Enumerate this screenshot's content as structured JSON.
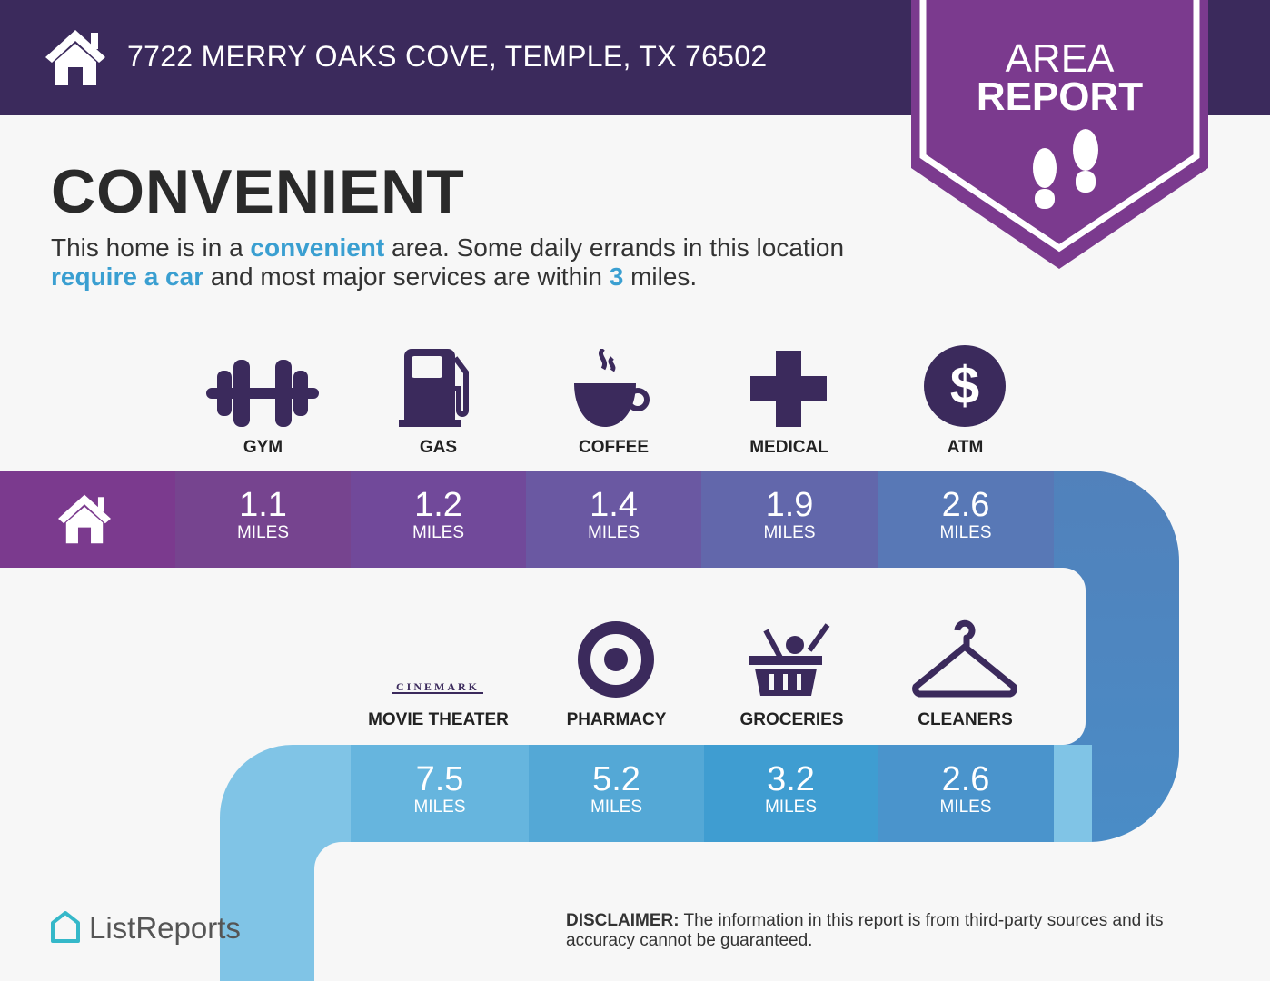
{
  "header": {
    "address": "7722 MERRY OAKS COVE, TEMPLE, TX 76502",
    "icon": "home-icon"
  },
  "badge": {
    "line1": "AREA",
    "line2": "REPORT",
    "icon": "footprints-icon"
  },
  "main": {
    "title": "CONVENIENT",
    "desc": {
      "p1": "This home is in a ",
      "h1": "convenient",
      "p2": " area. Some daily errands in this location ",
      "h2": "require a car",
      "p3": " and most major services are within ",
      "h3": "3",
      "p4": " miles."
    }
  },
  "row1": [
    {
      "label": "GYM",
      "value": "1.1",
      "unit": "MILES",
      "icon": "dumbbell-icon",
      "color": "#76448f"
    },
    {
      "label": "GAS",
      "value": "1.2",
      "unit": "MILES",
      "icon": "gas-pump-icon",
      "color": "#71499a"
    },
    {
      "label": "COFFEE",
      "value": "1.4",
      "unit": "MILES",
      "icon": "coffee-cup-icon",
      "color": "#6a58a2"
    },
    {
      "label": "MEDICAL",
      "value": "1.9",
      "unit": "MILES",
      "icon": "medical-cross-icon",
      "color": "#6267ab"
    },
    {
      "label": "ATM",
      "value": "2.6",
      "unit": "MILES",
      "icon": "dollar-icon",
      "color": "#5878b6"
    }
  ],
  "row2": [
    {
      "label": "MOVIE THEATER",
      "value": "7.5",
      "unit": "MILES",
      "icon": "cinemark-logo",
      "logo_text": "CINEMARK",
      "color": "#66b5de"
    },
    {
      "label": "PHARMACY",
      "value": "5.2",
      "unit": "MILES",
      "icon": "target-icon",
      "color": "#54a8d6"
    },
    {
      "label": "GROCERIES",
      "value": "3.2",
      "unit": "MILES",
      "icon": "grocery-basket-icon",
      "color": "#3f9dd1"
    },
    {
      "label": "CLEANERS",
      "value": "2.6",
      "unit": "MILES",
      "icon": "hanger-icon",
      "color": "#4a94cc"
    }
  ],
  "footer": {
    "logo": "ListReports",
    "disclaimer_label": "DISCLAIMER:",
    "disclaimer": " The information in this report is from third-party sources and its accuracy cannot be guaranteed."
  },
  "colors": {
    "header": "#3b2a5c",
    "badge": "#7b3a8e",
    "icon": "#3b2a5c",
    "highlight": "#3a9fd1"
  }
}
